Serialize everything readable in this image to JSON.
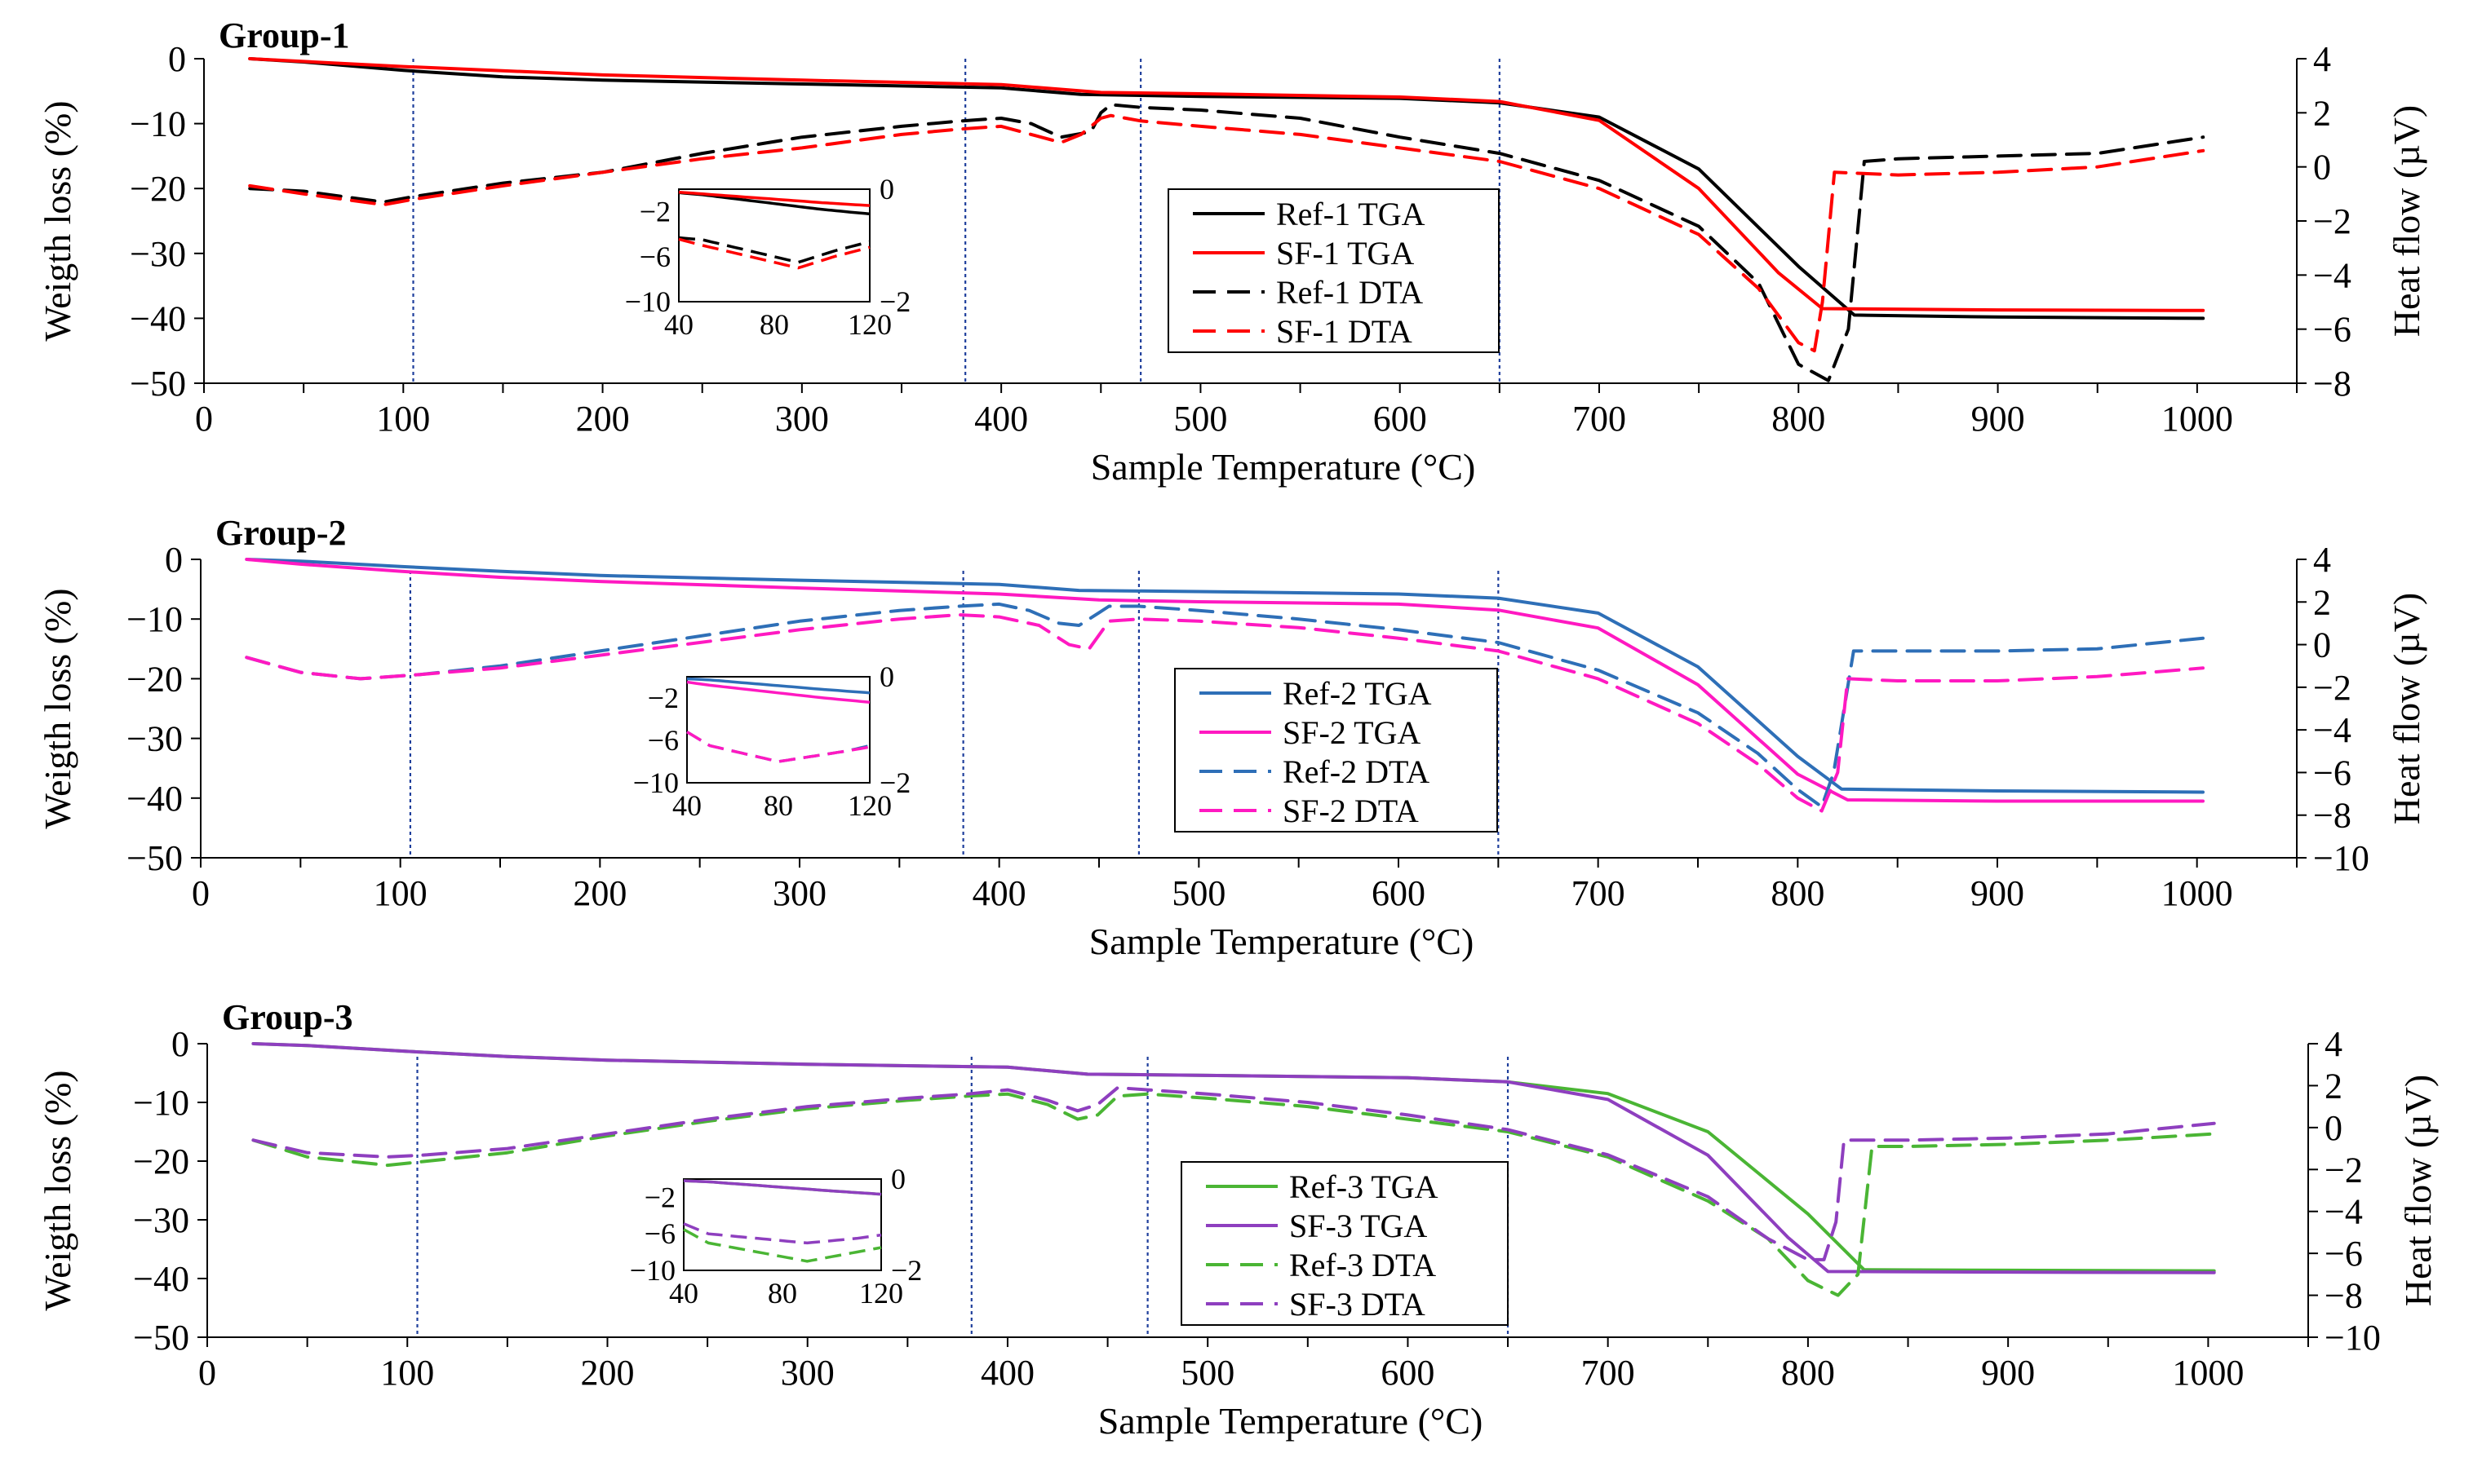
{
  "chart_data": [
    {
      "type": "line",
      "title": "Group-1",
      "xlabel": "Sample Temperature (°C)",
      "ylabel": "Weigth loss (%)",
      "y2label": "Heat flow (µV)",
      "xlim": [
        0,
        1050
      ],
      "ylim": [
        -50,
        0
      ],
      "y2lim": [
        -8,
        4
      ],
      "xticks": [
        0,
        100,
        200,
        300,
        400,
        500,
        600,
        700,
        800,
        900,
        1000
      ],
      "yticks": [
        0,
        -10,
        -20,
        -30,
        -40,
        -50
      ],
      "y2ticks": [
        4,
        2,
        0,
        -2,
        -4,
        -6,
        -8
      ],
      "vlines": [
        105,
        382,
        470,
        650
      ],
      "legend": {
        "position": "center-right",
        "entries": [
          "Ref-1 TGA",
          "SF-1 TGA",
          "Ref-1 DTA",
          "SF-1 DTA"
        ]
      },
      "series": [
        {
          "name": "Ref-1 TGA",
          "axis": "left",
          "color": "#000000",
          "style": "solid",
          "x": [
            23,
            50,
            100,
            150,
            200,
            300,
            400,
            440,
            500,
            600,
            650,
            700,
            750,
            800,
            828,
            900,
            1003
          ],
          "y": [
            0,
            -0.5,
            -1.8,
            -2.8,
            -3.3,
            -3.9,
            -4.5,
            -5.5,
            -5.8,
            -6.1,
            -6.8,
            -9,
            -17,
            -32,
            -39.5,
            -39.8,
            -40
          ]
        },
        {
          "name": "SF-1 TGA",
          "axis": "left",
          "color": "#ff0000",
          "style": "solid",
          "x": [
            23,
            100,
            200,
            300,
            400,
            450,
            500,
            600,
            650,
            700,
            750,
            790,
            812,
            900,
            1003
          ],
          "y": [
            0,
            -1.2,
            -2.5,
            -3.3,
            -4,
            -5.2,
            -5.4,
            -5.9,
            -6.6,
            -9.5,
            -20,
            -33,
            -38.5,
            -38.7,
            -38.8
          ]
        },
        {
          "name": "Ref-1 DTA",
          "axis": "right",
          "color": "#000000",
          "style": "dashed",
          "x": [
            23,
            50,
            90,
            105,
            150,
            200,
            250,
            300,
            350,
            380,
            400,
            415,
            430,
            445,
            450,
            455,
            470,
            500,
            550,
            600,
            650,
            700,
            750,
            780,
            800,
            815,
            825,
            833,
            850,
            900,
            950,
            1003
          ],
          "y": [
            -0.8,
            -0.9,
            -1.3,
            -1.1,
            -0.6,
            -0.2,
            0.5,
            1.1,
            1.5,
            1.7,
            1.8,
            1.6,
            1.1,
            1.3,
            2,
            2.3,
            2.2,
            2.1,
            1.8,
            1.1,
            0.5,
            -0.5,
            -2.2,
            -4.3,
            -7.3,
            -7.9,
            -6,
            0.2,
            0.3,
            0.4,
            0.5,
            1.1
          ]
        },
        {
          "name": "SF-1 DTA",
          "axis": "right",
          "color": "#ff0000",
          "style": "dashed",
          "x": [
            23,
            50,
            90,
            105,
            150,
            200,
            250,
            300,
            350,
            380,
            400,
            415,
            430,
            440,
            450,
            455,
            470,
            500,
            550,
            600,
            650,
            700,
            750,
            780,
            800,
            808,
            812,
            818,
            850,
            900,
            950,
            1003
          ],
          "y": [
            -0.7,
            -1,
            -1.4,
            -1.2,
            -0.7,
            -0.2,
            0.3,
            0.7,
            1.2,
            1.4,
            1.5,
            1.2,
            0.9,
            1.2,
            1.8,
            1.9,
            1.7,
            1.5,
            1.2,
            0.7,
            0.2,
            -0.8,
            -2.5,
            -4.5,
            -6.5,
            -6.8,
            -5,
            -0.2,
            -0.3,
            -0.2,
            0,
            0.6
          ]
        }
      ],
      "inset": {
        "xlim": [
          40,
          120
        ],
        "ylim": [
          -10,
          0
        ],
        "y2lim": [
          -2,
          0
        ],
        "xticks": [
          40,
          80,
          120
        ],
        "yticks": [
          -2,
          -6,
          -10
        ],
        "y2ticks": [
          0,
          -2
        ]
      }
    },
    {
      "type": "line",
      "title": "Group-2",
      "xlabel": "Sample Temperature (°C)",
      "ylabel": "Weigth loss (%)",
      "y2label": "Heat flow (µV)",
      "xlim": [
        0,
        1050
      ],
      "ylim": [
        -50,
        0
      ],
      "y2lim": [
        -10,
        4
      ],
      "xticks": [
        0,
        100,
        200,
        300,
        400,
        500,
        600,
        700,
        800,
        900,
        1000
      ],
      "yticks": [
        0,
        -10,
        -20,
        -30,
        -40,
        -50
      ],
      "y2ticks": [
        4,
        2,
        0,
        -2,
        -4,
        -6,
        -8,
        -10
      ],
      "vlines": [
        105,
        382,
        470,
        650
      ],
      "legend": {
        "position": "center-right",
        "entries": [
          "Ref-2 TGA",
          "SF-2 TGA",
          "Ref-2 DTA",
          "SF-2 DTA"
        ]
      },
      "series": [
        {
          "name": "Ref-2 TGA",
          "axis": "left",
          "color": "#2e6fb7",
          "style": "solid",
          "x": [
            23,
            50,
            100,
            150,
            200,
            300,
            400,
            440,
            500,
            600,
            650,
            700,
            750,
            800,
            822,
            900,
            1003
          ],
          "y": [
            0,
            -0.3,
            -1.2,
            -2,
            -2.7,
            -3.5,
            -4.2,
            -5.2,
            -5.4,
            -5.8,
            -6.5,
            -9,
            -18,
            -33,
            -38.5,
            -38.8,
            -39
          ]
        },
        {
          "name": "SF-2 TGA",
          "axis": "left",
          "color": "#ff19c1",
          "style": "solid",
          "x": [
            23,
            50,
            100,
            150,
            200,
            300,
            400,
            450,
            500,
            600,
            650,
            700,
            750,
            800,
            825,
            900,
            1003
          ],
          "y": [
            0,
            -0.8,
            -2,
            -3,
            -3.7,
            -4.8,
            -5.8,
            -6.8,
            -7.1,
            -7.5,
            -8.5,
            -11.5,
            -21,
            -36,
            -40.3,
            -40.5,
            -40.5
          ]
        },
        {
          "name": "Ref-2 DTA",
          "axis": "right",
          "color": "#2e6fb7",
          "style": "dashed",
          "x": [
            23,
            50,
            80,
            110,
            150,
            200,
            250,
            300,
            350,
            380,
            400,
            415,
            430,
            440,
            450,
            455,
            470,
            500,
            550,
            600,
            650,
            700,
            750,
            780,
            800,
            812,
            818,
            828,
            850,
            900,
            950,
            1003
          ],
          "y": [
            -0.6,
            -1.3,
            -1.6,
            -1.4,
            -1,
            -0.3,
            0.4,
            1.1,
            1.6,
            1.8,
            1.9,
            1.6,
            1,
            0.9,
            1.5,
            1.8,
            1.8,
            1.6,
            1.2,
            0.7,
            0.1,
            -1.2,
            -3.2,
            -5.1,
            -6.8,
            -7.6,
            -6,
            -0.3,
            -0.3,
            -0.3,
            -0.2,
            0.3
          ]
        },
        {
          "name": "SF-2 DTA",
          "axis": "right",
          "color": "#ff19c1",
          "style": "dashed",
          "x": [
            23,
            50,
            80,
            110,
            150,
            200,
            250,
            300,
            350,
            380,
            400,
            420,
            435,
            445,
            455,
            470,
            500,
            550,
            600,
            650,
            700,
            750,
            780,
            800,
            812,
            820,
            825,
            850,
            900,
            950,
            1003
          ],
          "y": [
            -0.6,
            -1.3,
            -1.6,
            -1.4,
            -1.1,
            -0.5,
            0.1,
            0.7,
            1.2,
            1.4,
            1.3,
            0.9,
            0,
            -0.2,
            1.1,
            1.2,
            1.1,
            0.8,
            0.3,
            -0.3,
            -1.6,
            -3.7,
            -5.6,
            -7.2,
            -7.8,
            -6,
            -1.6,
            -1.7,
            -1.7,
            -1.5,
            -1.1
          ]
        }
      ],
      "inset": {
        "xlim": [
          40,
          120
        ],
        "ylim": [
          -10,
          0
        ],
        "y2lim": [
          -2,
          0
        ],
        "xticks": [
          40,
          80,
          120
        ],
        "yticks": [
          -2,
          -6,
          -10
        ],
        "y2ticks": [
          0,
          -2
        ]
      }
    },
    {
      "type": "line",
      "title": "Group-3",
      "xlabel": "Sample Temperature (°C)",
      "ylabel": "Weigth loss (%)",
      "y2label": "Heat flow (µV)",
      "xlim": [
        0,
        1050
      ],
      "ylim": [
        -50,
        0
      ],
      "y2lim": [
        -10,
        4
      ],
      "xticks": [
        0,
        100,
        200,
        300,
        400,
        500,
        600,
        700,
        800,
        900,
        1000
      ],
      "yticks": [
        0,
        -10,
        -20,
        -30,
        -40,
        -50
      ],
      "y2ticks": [
        4,
        2,
        0,
        -2,
        -4,
        -6,
        -8,
        -10
      ],
      "vlines": [
        105,
        382,
        470,
        650
      ],
      "legend": {
        "position": "center-right",
        "entries": [
          "Ref-3 TGA",
          "SF-3 TGA",
          "Ref-3 DTA",
          "SF-3 DTA"
        ]
      },
      "series": [
        {
          "name": "Ref-3 TGA",
          "axis": "left",
          "color": "#4ab534",
          "style": "solid",
          "x": [
            23,
            50,
            100,
            150,
            200,
            300,
            400,
            440,
            500,
            600,
            650,
            700,
            750,
            800,
            828,
            900,
            1003
          ],
          "y": [
            0,
            -0.3,
            -1.3,
            -2.2,
            -2.8,
            -3.5,
            -4,
            -5.2,
            -5.4,
            -5.8,
            -6.5,
            -8.5,
            -15,
            -29,
            -38.5,
            -38.6,
            -38.7
          ]
        },
        {
          "name": "SF-3 TGA",
          "axis": "left",
          "color": "#8e3fbf",
          "style": "solid",
          "x": [
            23,
            50,
            100,
            150,
            200,
            300,
            400,
            440,
            500,
            600,
            650,
            700,
            750,
            790,
            810,
            900,
            1003
          ],
          "y": [
            0,
            -0.3,
            -1.3,
            -2.2,
            -2.8,
            -3.5,
            -4,
            -5.2,
            -5.4,
            -5.8,
            -6.5,
            -9.5,
            -19,
            -33,
            -38.8,
            -38.9,
            -39
          ]
        },
        {
          "name": "Ref-3 DTA",
          "axis": "right",
          "color": "#4ab534",
          "style": "dashed",
          "x": [
            23,
            50,
            90,
            110,
            150,
            200,
            250,
            300,
            350,
            380,
            400,
            420,
            435,
            445,
            455,
            470,
            500,
            550,
            600,
            650,
            700,
            750,
            780,
            800,
            815,
            825,
            832,
            850,
            900,
            950,
            1003
          ],
          "y": [
            -0.6,
            -1.4,
            -1.8,
            -1.6,
            -1.2,
            -0.4,
            0.3,
            0.9,
            1.3,
            1.5,
            1.6,
            1.1,
            0.4,
            0.6,
            1.5,
            1.6,
            1.4,
            1,
            0.4,
            -0.2,
            -1.4,
            -3.5,
            -5.3,
            -7.3,
            -8,
            -7,
            -0.9,
            -0.9,
            -0.8,
            -0.6,
            -0.3
          ]
        },
        {
          "name": "SF-3 DTA",
          "axis": "right",
          "color": "#8e3fbf",
          "style": "dashed",
          "x": [
            23,
            50,
            90,
            110,
            150,
            200,
            250,
            300,
            350,
            380,
            400,
            420,
            435,
            445,
            455,
            470,
            500,
            550,
            600,
            650,
            700,
            750,
            780,
            800,
            808,
            814,
            818,
            850,
            900,
            950,
            1003
          ],
          "y": [
            -0.6,
            -1.2,
            -1.4,
            -1.3,
            -1,
            -0.3,
            0.4,
            1,
            1.4,
            1.6,
            1.8,
            1.3,
            0.8,
            1.1,
            1.9,
            1.8,
            1.6,
            1.2,
            0.6,
            -0.1,
            -1.3,
            -3.3,
            -5.3,
            -6.3,
            -6.3,
            -4.5,
            -0.6,
            -0.6,
            -0.5,
            -0.3,
            0.2
          ]
        }
      ],
      "inset": {
        "xlim": [
          40,
          120
        ],
        "ylim": [
          -10,
          0
        ],
        "y2lim": [
          -2,
          0
        ],
        "xticks": [
          40,
          80,
          120
        ],
        "yticks": [
          -2,
          -6,
          -10
        ],
        "y2ticks": [
          0,
          -2
        ]
      }
    }
  ]
}
